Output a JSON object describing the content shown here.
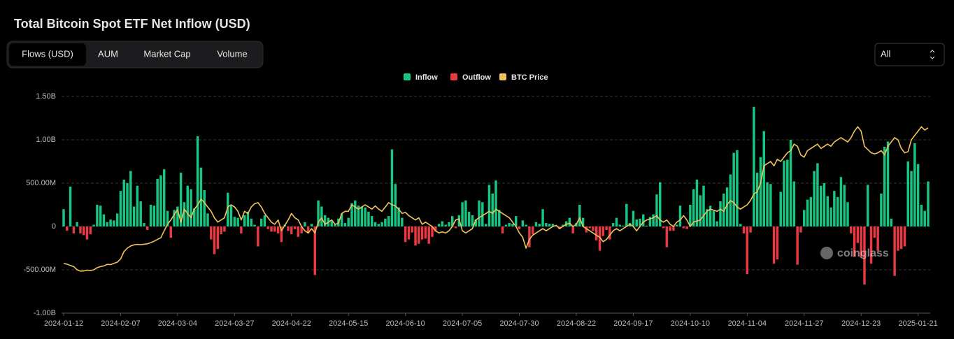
{
  "ui": {
    "tabs": [
      "Flows (USD)",
      "AUM",
      "Market Cap",
      "Volume"
    ],
    "active_tab": 0,
    "select": "All",
    "watermark": "coinglass"
  },
  "chart_data": {
    "type": "bar",
    "title": "Total Bitcoin Spot ETF Net Inflow (USD)",
    "categories": [
      "2024-01-12",
      null,
      null,
      null,
      null,
      null,
      null,
      null,
      null,
      null,
      null,
      null,
      null,
      null,
      null,
      null,
      null,
      "2024-02-07",
      null,
      null,
      null,
      null,
      null,
      null,
      null,
      null,
      null,
      null,
      null,
      null,
      null,
      null,
      null,
      null,
      "2024-03-04",
      null,
      null,
      null,
      null,
      null,
      null,
      null,
      null,
      null,
      null,
      null,
      null,
      null,
      null,
      null,
      null,
      "2024-03-27",
      null,
      null,
      null,
      null,
      null,
      null,
      null,
      null,
      null,
      null,
      null,
      null,
      null,
      null,
      null,
      null,
      "2024-04-22",
      null,
      null,
      null,
      null,
      null,
      null,
      null,
      null,
      null,
      null,
      null,
      null,
      null,
      null,
      null,
      null,
      "2024-05-15",
      null,
      null,
      null,
      null,
      null,
      null,
      null,
      null,
      null,
      null,
      null,
      null,
      null,
      null,
      null,
      null,
      "2024-06-10",
      null,
      null,
      null,
      null,
      null,
      null,
      null,
      null,
      null,
      null,
      null,
      null,
      null,
      null,
      null,
      null,
      "2024-07-05",
      null,
      null,
      null,
      null,
      null,
      null,
      null,
      null,
      null,
      null,
      null,
      null,
      null,
      null,
      null,
      null,
      "2024-07-30",
      null,
      null,
      null,
      null,
      null,
      null,
      null,
      null,
      null,
      null,
      null,
      null,
      null,
      null,
      null,
      null,
      "2024-08-22",
      null,
      null,
      null,
      null,
      null,
      null,
      null,
      null,
      null,
      null,
      null,
      null,
      null,
      null,
      null,
      null,
      "2024-09-17",
      null,
      null,
      null,
      null,
      null,
      null,
      null,
      null,
      null,
      null,
      null,
      null,
      null,
      null,
      null,
      null,
      "2024-10-10",
      null,
      null,
      null,
      null,
      null,
      null,
      null,
      null,
      null,
      null,
      null,
      null,
      null,
      null,
      null,
      null,
      "2024-11-04",
      null,
      null,
      null,
      null,
      null,
      null,
      null,
      null,
      null,
      null,
      null,
      null,
      null,
      null,
      null,
      null,
      "2024-11-27",
      null,
      null,
      null,
      null,
      null,
      null,
      null,
      null,
      null,
      null,
      null,
      null,
      null,
      null,
      null,
      null,
      "2024-12-23",
      null,
      null,
      null,
      null,
      null,
      null,
      null,
      null,
      null,
      null,
      null,
      null,
      null,
      null,
      null,
      null,
      "2025-01-21",
      null,
      null,
      null
    ],
    "series": [
      {
        "name": "Inflow",
        "color": "#16c784",
        "values": [
          200000000.0,
          null,
          460000000.0,
          null,
          50000000.0,
          null,
          null,
          null,
          null,
          20000000.0,
          250000000.0,
          240000000.0,
          140000000.0,
          50000000.0,
          80000000.0,
          70000000.0,
          150000000.0,
          410000000.0,
          540000000.0,
          500000000.0,
          640000000.0,
          230000000.0,
          470000000.0,
          290000000.0,
          40000000.0,
          null,
          250000000.0,
          240000000.0,
          550000000.0,
          590000000.0,
          660000000.0,
          180000000.0,
          null,
          190000000.0,
          230000000.0,
          620000000.0,
          280000000.0,
          470000000.0,
          430000000.0,
          210000000.0,
          1040000000.0,
          680000000.0,
          420000000.0,
          150000000.0,
          null,
          null,
          null,
          null,
          null,
          390000000.0,
          240000000.0,
          110000000.0,
          100000000.0,
          null,
          130000000.0,
          170000000.0,
          90000000.0,
          20000000.0,
          null,
          90000000.0,
          130000000.0,
          null,
          null,
          null,
          null,
          null,
          20000000.0,
          null,
          null,
          null,
          null,
          null,
          50000000.0,
          null,
          30000000.0,
          null,
          300000000.0,
          230000000.0,
          130000000.0,
          100000000.0,
          60000000.0,
          30000000.0,
          90000000.0,
          150000000.0,
          40000000.0,
          100000000.0,
          270000000.0,
          300000000.0,
          240000000.0,
          230000000.0,
          220000000.0,
          170000000.0,
          120000000.0,
          50000000.0,
          30000000.0,
          50000000.0,
          90000000.0,
          120000000.0,
          890000000.0,
          490000000.0,
          220000000.0,
          100000000.0,
          null,
          null,
          null,
          null,
          null,
          null,
          null,
          null,
          null,
          null,
          30000000.0,
          60000000.0,
          20000000.0,
          50000000.0,
          120000000.0,
          null,
          130000000.0,
          280000000.0,
          300000000.0,
          170000000.0,
          130000000.0,
          80000000.0,
          300000000.0,
          280000000.0,
          30000000.0,
          480000000.0,
          380000000.0,
          530000000.0,
          190000000.0,
          null,
          20000000.0,
          40000000.0,
          30000000.0,
          120000000.0,
          null,
          70000000.0,
          20000000.0,
          null,
          null,
          50000000.0,
          30000000.0,
          200000000.0,
          40000000.0,
          30000000.0,
          30000000.0,
          10000000.0,
          null,
          20000000.0,
          60000000.0,
          100000000.0,
          null,
          40000000.0,
          250000000.0,
          100000000.0,
          null,
          null,
          null,
          null,
          null,
          null,
          null,
          null,
          40000000.0,
          100000000.0,
          20000000.0,
          10000000.0,
          260000000.0,
          40000000.0,
          180000000.0,
          80000000.0,
          90000000.0,
          140000000.0,
          10000000.0,
          110000000.0,
          140000000.0,
          370000000.0,
          510000000.0,
          null,
          null,
          null,
          null,
          20000000.0,
          240000000.0,
          null,
          null,
          250000000.0,
          430000000.0,
          540000000.0,
          360000000.0,
          470000000.0,
          200000000.0,
          240000000.0,
          180000000.0,
          60000000.0,
          290000000.0,
          380000000.0,
          450000000.0,
          600000000.0,
          850000000.0,
          880000000.0,
          30000000.0,
          null,
          null,
          null,
          1380000000.0,
          620000000.0,
          800000000.0,
          1100000000.0,
          510000000.0,
          490000000.0,
          null,
          null,
          400000000.0,
          760000000.0,
          770000000.0,
          1000000000.0,
          520000000.0,
          null,
          null,
          190000000.0,
          310000000.0,
          340000000.0,
          640000000.0,
          730000000.0,
          470000000.0,
          500000000.0,
          350000000.0,
          220000000.0,
          410000000.0,
          340000000.0,
          570000000.0,
          480000000.0,
          280000000.0,
          null,
          null,
          null,
          null,
          null,
          480000000.0,
          null,
          null,
          null,
          380000000.0,
          920000000.0,
          980000000.0,
          90000000.0,
          null,
          null,
          null,
          null,
          750000000.0,
          640000000.0,
          960000000.0,
          720000000.0,
          250000000.0,
          180000000.0,
          520000000.0
        ]
      },
      {
        "name": "Outflow",
        "color": "#ea3943",
        "values": [
          null,
          -50000000.0,
          null,
          -80000000.0,
          null,
          -80000000.0,
          -100000000.0,
          -150000000.0,
          -90000000.0,
          null,
          null,
          null,
          null,
          null,
          null,
          null,
          null,
          null,
          null,
          null,
          null,
          null,
          null,
          null,
          null,
          -40000000.0,
          null,
          null,
          null,
          null,
          null,
          null,
          -130000000.0,
          null,
          null,
          null,
          null,
          null,
          null,
          null,
          null,
          null,
          null,
          null,
          -150000000.0,
          -320000000.0,
          -260000000.0,
          -90000000.0,
          -60000000.0,
          null,
          null,
          null,
          null,
          -80000000.0,
          null,
          null,
          null,
          null,
          -230000000.0,
          null,
          null,
          -30000000.0,
          -60000000.0,
          -60000000.0,
          -80000000.0,
          -180000000.0,
          null,
          -50000000.0,
          -90000000.0,
          -30000000.0,
          -120000000.0,
          -80000000.0,
          null,
          -80000000.0,
          null,
          -560000000.0,
          null,
          null,
          null,
          null,
          null,
          null,
          null,
          null,
          null,
          null,
          null,
          null,
          null,
          null,
          null,
          null,
          null,
          null,
          null,
          null,
          null,
          null,
          null,
          null,
          null,
          null,
          -180000000.0,
          -150000000.0,
          -70000000.0,
          -220000000.0,
          -200000000.0,
          -150000000.0,
          -140000000.0,
          -200000000.0,
          -120000000.0,
          -60000000.0,
          null,
          null,
          null,
          null,
          null,
          -20000000.0,
          null,
          null,
          null,
          null,
          null,
          null,
          null,
          null,
          null,
          null,
          null,
          null,
          null,
          -80000000.0,
          null,
          null,
          null,
          null,
          -30000000.0,
          null,
          null,
          -240000000.0,
          -90000000.0,
          null,
          null,
          null,
          null,
          null,
          null,
          null,
          -30000000.0,
          null,
          null,
          null,
          -80000000.0,
          null,
          null,
          null,
          -70000000.0,
          -20000000.0,
          -50000000.0,
          -160000000.0,
          -280000000.0,
          -110000000.0,
          -40000000.0,
          -150000000.0,
          null,
          null,
          null,
          null,
          null,
          null,
          null,
          null,
          null,
          null,
          null,
          null,
          null,
          null,
          null,
          -20000000.0,
          -240000000.0,
          -50000000.0,
          -50000000.0,
          null,
          null,
          -20000000.0,
          -30000000.0,
          null,
          null,
          null,
          null,
          null,
          null,
          null,
          null,
          null,
          null,
          null,
          null,
          null,
          null,
          null,
          null,
          -80000000.0,
          -550000000.0,
          -70000000.0,
          null,
          null,
          null,
          null,
          null,
          null,
          -430000000.0,
          -380000000.0,
          null,
          null,
          null,
          null,
          null,
          -440000000.0,
          -70000000.0,
          null,
          null,
          null,
          null,
          null,
          null,
          null,
          null,
          null,
          null,
          null,
          null,
          null,
          null,
          -80000000.0,
          -350000000.0,
          -190000000.0,
          -360000000.0,
          -670000000.0,
          null,
          -430000000.0,
          -130000000.0,
          -280000000.0,
          null,
          null,
          null,
          null,
          -570000000.0,
          -280000000.0,
          -260000000.0,
          -230000000.0,
          null,
          null,
          null,
          null,
          null,
          null,
          null
        ]
      },
      {
        "name": "BTC Price",
        "color": "#f0c35a",
        "type": "line",
        "axis": "y2",
        "values": [
          42900,
          42600,
          42000,
          41500,
          40000,
          39400,
          39500,
          39800,
          39700,
          40000,
          41000,
          41500,
          41800,
          42500,
          42400,
          43000,
          43500,
          45000,
          48400,
          50000,
          51000,
          51500,
          51700,
          51600,
          51800,
          52000,
          52500,
          53200,
          54000,
          54800,
          58000,
          61000,
          63000,
          65500,
          67700,
          62000,
          68000,
          66000,
          64000,
          68000,
          70000,
          72600,
          71000,
          69000,
          67000,
          64000,
          62000,
          63000,
          64000,
          69000,
          70000,
          69000,
          67000,
          63000,
          67000,
          66000,
          69000,
          70500,
          71000,
          69000,
          66000,
          64000,
          62000,
          61000,
          63000,
          58000,
          60500,
          63000,
          66000,
          64000,
          63000,
          60000,
          58000,
          57000,
          59000,
          57000,
          62000,
          64000,
          61000,
          62000,
          63000,
          61000,
          61500,
          66000,
          67000,
          67000,
          70000,
          69000,
          68000,
          69000,
          70000,
          69000,
          68000,
          69500,
          68000,
          67000,
          69000,
          71000,
          70000,
          69500,
          68000,
          66000,
          66500,
          65000,
          64000,
          63000,
          64000,
          61000,
          62000,
          61000,
          60000,
          58000,
          57000,
          57500,
          57000,
          58000,
          60000,
          63000,
          63500,
          58000,
          57000,
          58000,
          59000,
          63000,
          64000,
          65000,
          66000,
          67000,
          66000,
          68000,
          67000,
          66000,
          65000,
          64000,
          62000,
          60000,
          57000,
          55000,
          50000,
          54000,
          56000,
          57000,
          58000,
          59000,
          58000,
          59000,
          60000,
          60500,
          59000,
          60000,
          61000,
          61500,
          60000,
          61000,
          64000,
          60000,
          59000,
          58000,
          57000,
          56000,
          55000,
          53000,
          54000,
          56000,
          58000,
          59000,
          58000,
          59000,
          60000,
          61000,
          60000,
          58000,
          60000,
          62000,
          63000,
          63500,
          64000,
          65000,
          63000,
          62000,
          63000,
          61000,
          60000,
          62000,
          63000,
          65000,
          63000,
          60000,
          62000,
          62500,
          63000,
          65000,
          67000,
          68000,
          67500,
          67000,
          68000,
          67000,
          70000,
          72000,
          71000,
          69000,
          68000,
          69000,
          70000,
          72000,
          75000,
          76000,
          80000,
          88000,
          89000,
          90000,
          88000,
          91000,
          90000,
          92000,
          94000,
          95000,
          98000,
          97000,
          93000,
          92000,
          95000,
          96000,
          97000,
          98000,
          96000,
          97000,
          98000,
          97000,
          99000,
          100000,
          101000,
          100000,
          99000,
          101000,
          104000,
          106000,
          104000,
          97000,
          95500,
          94000,
          93500,
          94000,
          95000,
          93000,
          97000,
          99000,
          101000,
          100000,
          96000,
          94000,
          94500,
          100000,
          102000,
          104000,
          106000,
          104500,
          105500
        ]
      }
    ],
    "ylim": [
      -1000000000,
      1500000000
    ],
    "yticks": [
      {
        "value": -1000000000,
        "label": "-1.00B"
      },
      {
        "value": -500000000,
        "label": "-500.00M"
      },
      0,
      {
        "value": 500000000,
        "label": "500.00M"
      },
      {
        "value": 1000000000,
        "label": "1.00B"
      },
      {
        "value": 1500000000,
        "label": "1.50B"
      }
    ],
    "y2lim": [
      20000,
      120000
    ],
    "grid": true,
    "legend": "top"
  }
}
